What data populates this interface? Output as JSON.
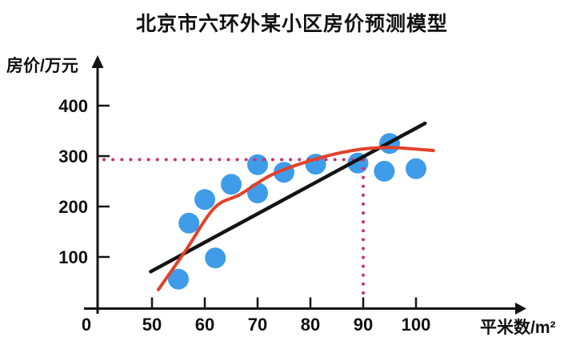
{
  "title": "北京市六环外某小区房价预测模型",
  "chart_data": {
    "type": "scatter",
    "title": "北京市六环外某小区房价预测模型",
    "xlabel": "平米数/m²",
    "ylabel": "房价/万元",
    "x_ticks": [
      0,
      50,
      60,
      70,
      80,
      90,
      100
    ],
    "y_ticks": [
      100,
      200,
      300,
      400
    ],
    "xlim": [
      0,
      105
    ],
    "ylim": [
      0,
      450
    ],
    "x_axis_compressed_before": 50,
    "grid": false,
    "legend": "none",
    "points": [
      [
        55,
        56
      ],
      [
        57,
        167
      ],
      [
        60,
        214
      ],
      [
        62,
        98
      ],
      [
        65,
        244
      ],
      [
        70,
        283
      ],
      [
        70,
        227
      ],
      [
        75,
        268
      ],
      [
        81,
        284
      ],
      [
        89,
        286
      ],
      [
        94,
        270
      ],
      [
        95,
        325
      ],
      [
        100,
        275
      ]
    ],
    "linear_fit": {
      "x1": 48.8,
      "y1": 71,
      "x2": 101.7,
      "y2": 365
    },
    "curve_fit": {
      "points": [
        [
          51.2,
          35
        ],
        [
          56.4,
          113
        ],
        [
          61.8,
          197
        ],
        [
          66.7,
          224
        ],
        [
          72.7,
          263
        ],
        [
          80.3,
          292
        ],
        [
          87.9,
          311
        ],
        [
          94.7,
          317
        ],
        [
          103.3,
          311
        ]
      ]
    },
    "guide": {
      "x": 90,
      "y": 293
    },
    "colors": {
      "scatter": "#3E9CE9",
      "linear": "#141414",
      "curve": "#E2422A",
      "guide": "#CC3370",
      "axis": "#141414"
    }
  }
}
